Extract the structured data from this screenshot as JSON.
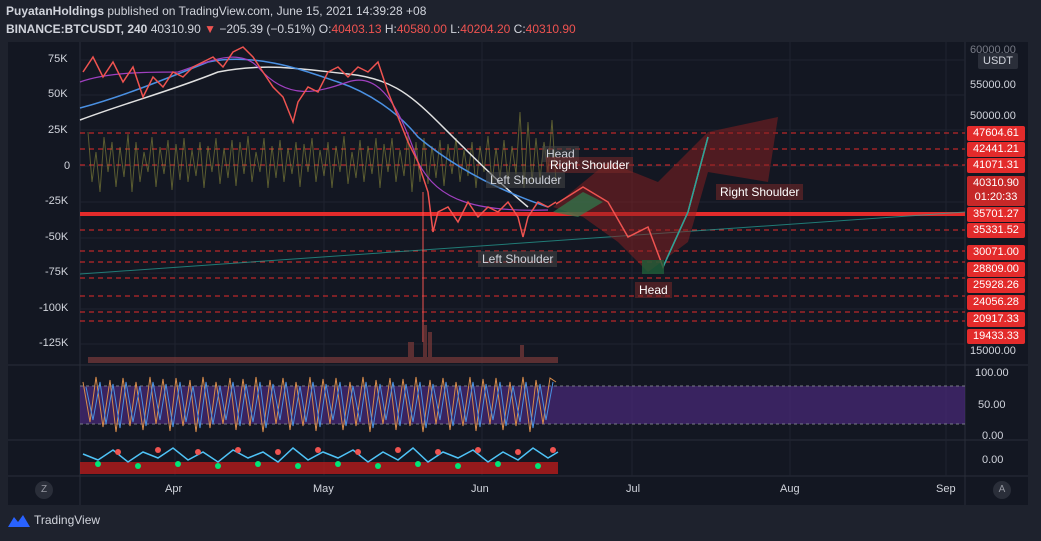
{
  "header": {
    "publisher": "PuyatanHoldings",
    "published_text": "published on TradingView.com, June 15, 2021 14:39:28 +08",
    "symbol": "BINANCE:BTCUSDT, 240",
    "last_price": "40310.90",
    "change": "−205.39 (−0.51%)",
    "o_label": "O:",
    "o_value": "40403.13",
    "h_label": "H:",
    "h_value": "40580.00",
    "l_label": "L:",
    "l_value": "40204.20",
    "c_label": "C:",
    "c_value": "40310.90"
  },
  "left_axis": [
    "75K",
    "50K",
    "25K",
    "0",
    "-25K",
    "-50K",
    "-75K",
    "-100K",
    "-125K"
  ],
  "right_axis": {
    "currency": "USDT",
    "top_partial": "60000.00",
    "plain_ticks": [
      "55000.00",
      "50000.00",
      "15000.00"
    ],
    "price_tags": [
      "47604.61",
      "42441.21",
      "41071.31",
      "35701.27",
      "35331.52",
      "30071.00",
      "28809.00",
      "25928.26",
      "24056.28",
      "20917.33",
      "19433.33"
    ],
    "current_price": "40310.90",
    "countdown": "01:20:33",
    "osc_ticks": [
      "100.00",
      "50.00",
      "0.00"
    ],
    "bottom_tick": "0.00"
  },
  "time_axis": [
    "Apr",
    "May",
    "Jun",
    "Jul",
    "Aug",
    "Sep"
  ],
  "buttons": {
    "left": "Z",
    "right": "A"
  },
  "annotations": {
    "head_top": "Head",
    "right_shoulder_top": "Right Shoulder",
    "left_shoulder_top": "Left Shoulder",
    "left_shoulder_bottom": "Left Shoulder",
    "head_bottom": "Head",
    "right_shoulder_bottom": "Right Shoulder"
  },
  "branding": "TradingView",
  "colors": {
    "background": "#131722",
    "panel": "#1e222d",
    "resistance_red": "#e32b2b",
    "oscillator_band": "#4a2a7a",
    "up": "#26a69a",
    "down": "#ef5350"
  }
}
